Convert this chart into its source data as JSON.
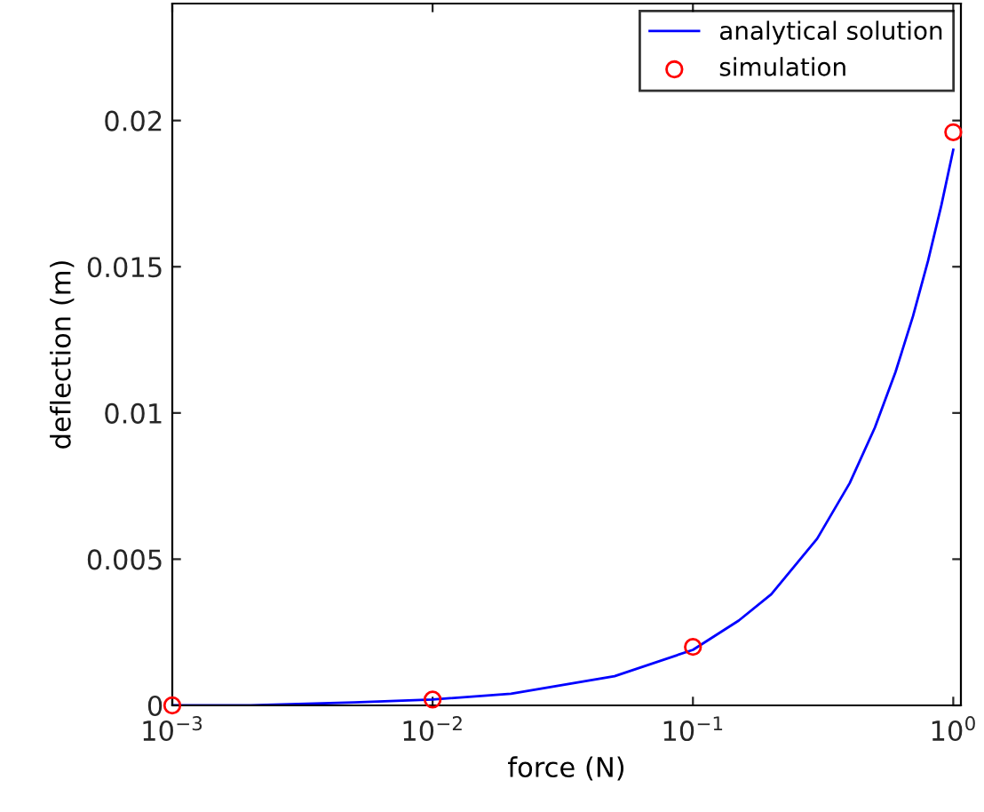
{
  "chart_data": {
    "type": "line",
    "xlabel": "force (N)",
    "ylabel": "deflection (m)",
    "log": "x",
    "xlim": [
      0.001,
      1.07
    ],
    "ylim": [
      0,
      0.024
    ],
    "xticks": [
      {
        "value": 0.001,
        "label": "10$^{−3}$"
      },
      {
        "value": 0.01,
        "label": "10$^{−2}$"
      },
      {
        "value": 0.1,
        "label": "10$^{−1}$"
      },
      {
        "value": 1,
        "label": "10$^{0}$"
      }
    ],
    "yticks": [
      0,
      0.005,
      0.01,
      0.015,
      0.02
    ],
    "grid": false,
    "legend": "top right",
    "series": [
      {
        "name": "analytical solution",
        "color": "#0000ff",
        "marker": "none",
        "line_style": "solid",
        "x": [
          0.001,
          0.002,
          0.005,
          0.01,
          0.02,
          0.05,
          0.1,
          0.15,
          0.2,
          0.3,
          0.4,
          0.5,
          0.6,
          0.7,
          0.8,
          0.9,
          1.0
        ],
        "values": [
          0,
          0,
          0.0001,
          0.0002,
          0.0004,
          0.001,
          0.0019,
          0.0029,
          0.0038,
          0.0057,
          0.0076,
          0.0095,
          0.0114,
          0.0133,
          0.0152,
          0.0171,
          0.019
        ]
      },
      {
        "name": "simulation",
        "type": "scatter",
        "color": "#ff0000",
        "marker": "circle",
        "x": [
          0.001,
          0.01,
          0.1,
          1
        ],
        "values": [
          0,
          0.0002,
          0.002,
          0.0196
        ]
      }
    ]
  }
}
